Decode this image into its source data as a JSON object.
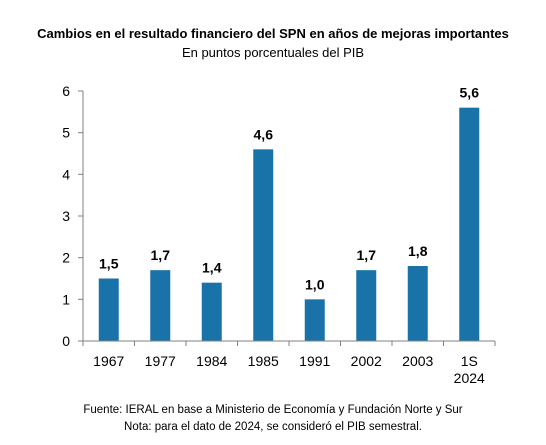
{
  "chart_data": {
    "type": "bar",
    "title": "Cambios en el resultado financiero del SPN en años de mejoras importantes",
    "subtitle": "En puntos porcentuales del PIB",
    "categories": [
      "1967",
      "1977",
      "1984",
      "1985",
      "1991",
      "2002",
      "2003",
      "1S 2024"
    ],
    "values": [
      1.5,
      1.7,
      1.4,
      4.6,
      1.0,
      1.7,
      1.8,
      5.6
    ],
    "data_labels": [
      "1,5",
      "1,7",
      "1,4",
      "4,6",
      "1,0",
      "1,7",
      "1,8",
      "5,6"
    ],
    "y_ticks": [
      0,
      1,
      2,
      3,
      4,
      5,
      6
    ],
    "ylim": [
      0,
      6
    ],
    "grid": false,
    "legend": "none",
    "bar_color": "#1a73a8"
  },
  "footer": {
    "source": "Fuente: IERAL en base a Ministerio de Economía y Fundación Norte y Sur",
    "note": "Nota: para el dato de 2024, se consideró el PIB semestral."
  }
}
